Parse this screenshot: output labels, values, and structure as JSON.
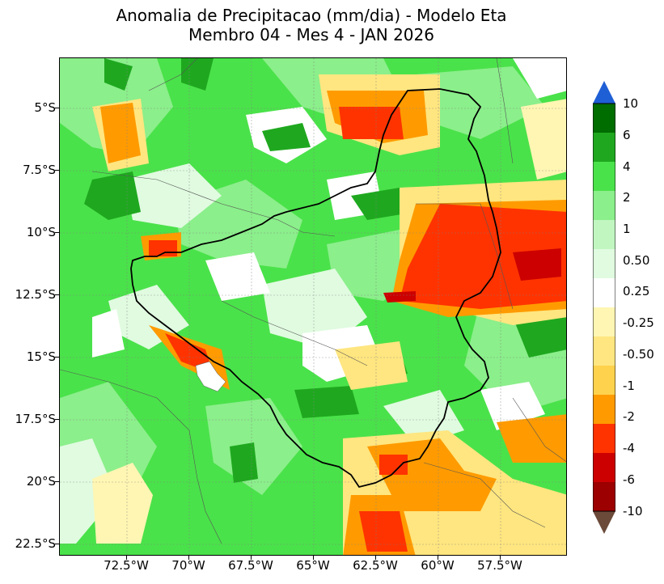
{
  "title_line1": "Anomalia de Precipitacao (mm/dia) - Modelo Eta",
  "title_line2": "Membro 04 - Mes 4 - JAN 2026",
  "lat_labels": [
    "5°S",
    "7.5°S",
    "10°S",
    "12.5°S",
    "15°S",
    "17.5°S",
    "20°S",
    "22.5°S"
  ],
  "lon_labels": [
    "72.5°W",
    "70°W",
    "67.5°W",
    "65°W",
    "62.5°W",
    "60°W",
    "57.5°W"
  ],
  "colorbar": {
    "labels": [
      "10",
      "6",
      "4",
      "2",
      "1",
      "0.50",
      "0.25",
      "-0.25",
      "-0.50",
      "-1",
      "-2",
      "-4",
      "-6",
      "-10"
    ],
    "colors_top_to_bottom": [
      "#006d00",
      "#1fa81f",
      "#4ae24a",
      "#8bef8b",
      "#c1f6c1",
      "#e0fbe0",
      "#ffffff",
      "#fff6b3",
      "#ffe680",
      "#ffd24d",
      "#ff9b00",
      "#ff3300",
      "#cc0000",
      "#9c0000"
    ],
    "upper_extend_color": "#1f5fd6",
    "lower_extend_color": "#6b4a3a"
  },
  "map": {
    "land_base_color": "#4ae24a",
    "basin_outline_color": "#000000",
    "political_borders_color": "#555555",
    "grid": true
  }
}
